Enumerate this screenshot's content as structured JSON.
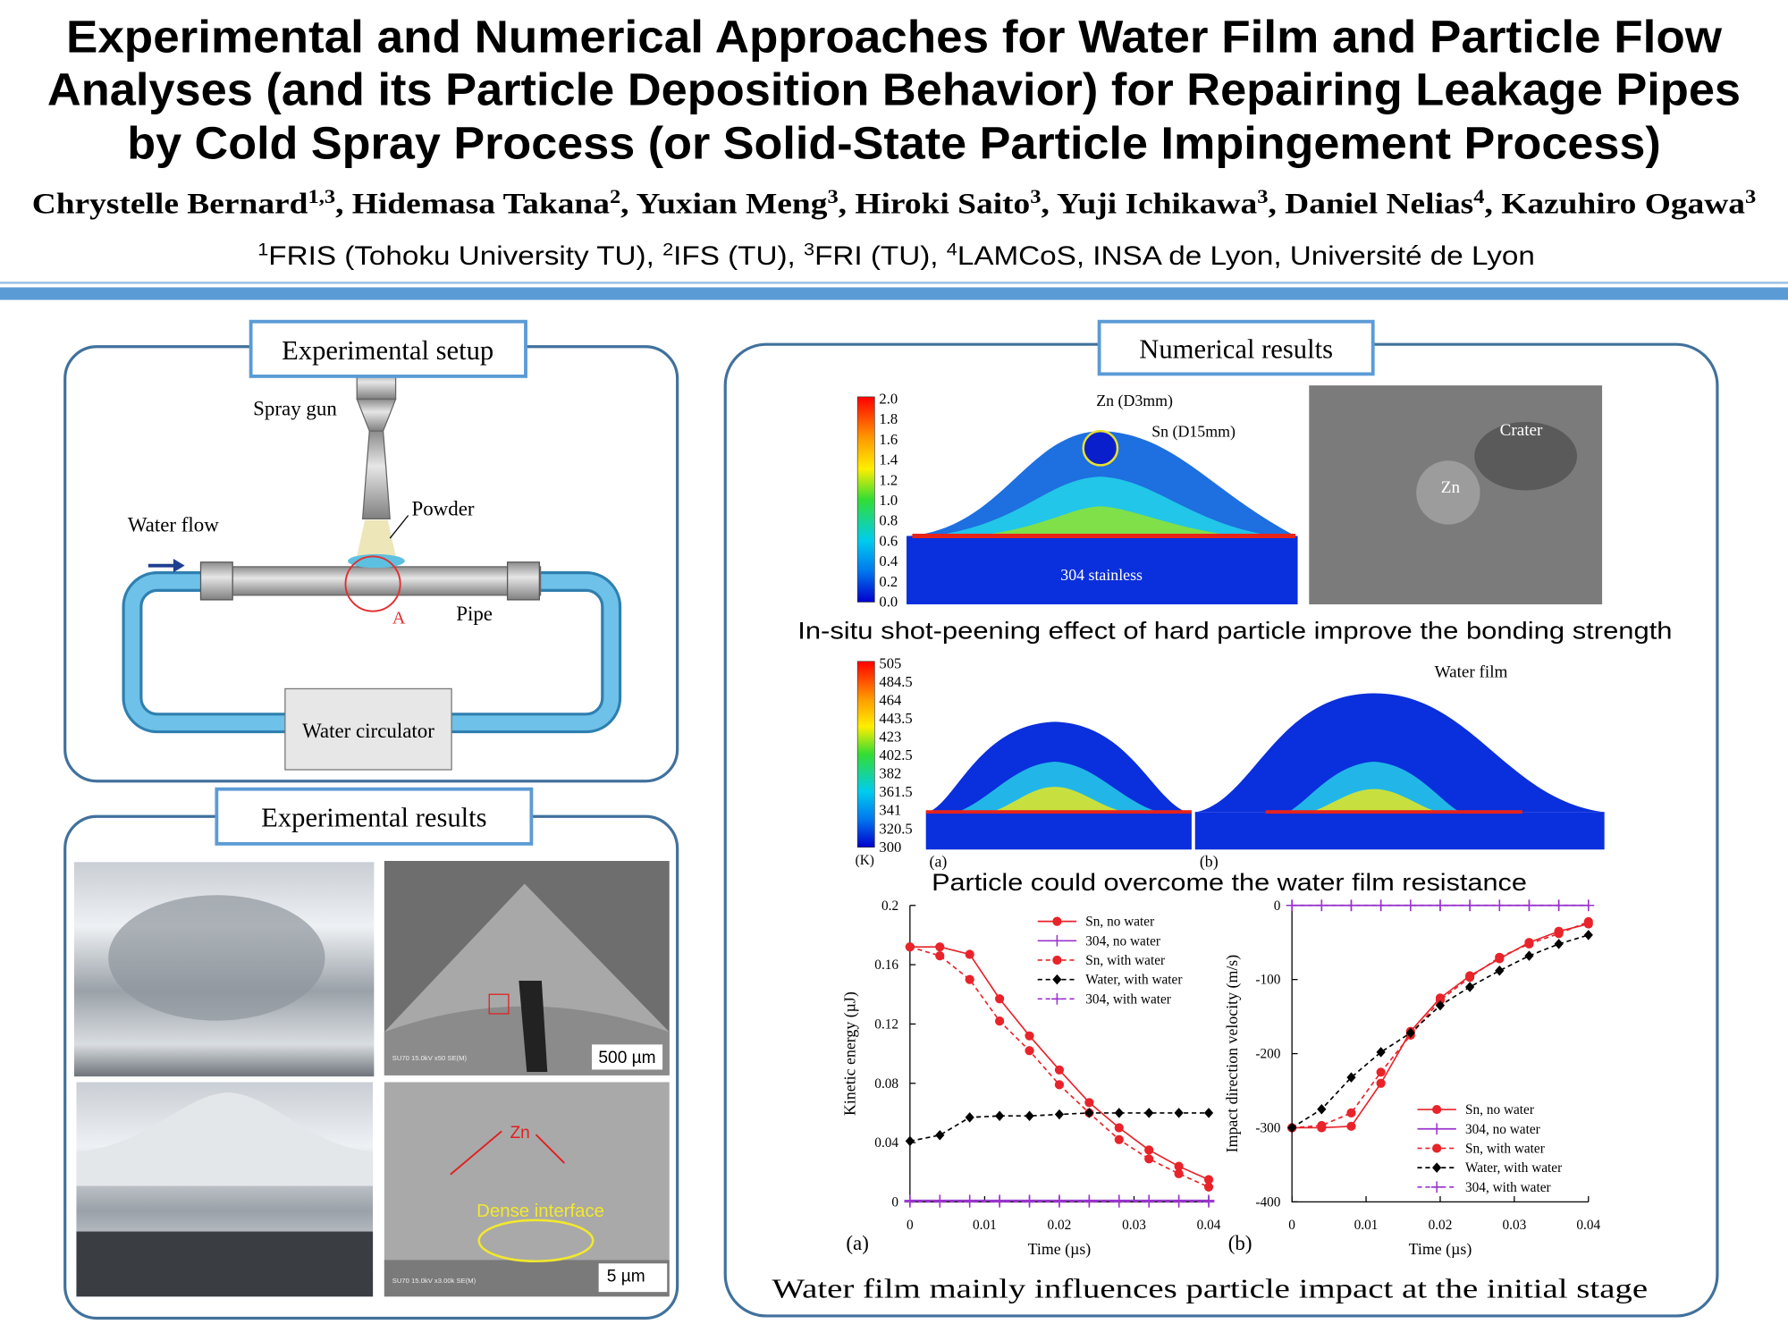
{
  "header": {
    "title_lines": [
      "Experimental and Numerical Approaches for Water Film and Particle Flow",
      "Analyses (and its Particle Deposition Behavior) for Repairing Leakage Pipes",
      "by Cold Spray Process (or Solid-State Particle Impingement Process)"
    ],
    "authors": [
      {
        "text": "Chrystelle Bernard",
        "sup": "1,3"
      },
      {
        "text": ", Hidemasa Takana",
        "sup": "2"
      },
      {
        "text": ", Yuxian Meng",
        "sup": "3"
      },
      {
        "text": ", Hiroki Saito",
        "sup": "3"
      },
      {
        "text": ", Yuji Ichikawa",
        "sup": "3"
      },
      {
        "text": ", Daniel Nelias",
        "sup": "4"
      },
      {
        "text": ", Kazuhiro Ogawa",
        "sup": "3"
      }
    ],
    "affiliations": [
      {
        "sup": "1",
        "text": "FRIS (Tohoku University TU), "
      },
      {
        "sup": "2",
        "text": "IFS (TU), "
      },
      {
        "sup": "3",
        "text": "FRI (TU), "
      },
      {
        "sup": "4",
        "text": "LAMCoS, INSA de Lyon, Université de Lyon"
      }
    ]
  },
  "setup": {
    "title": "Experimental setup",
    "labels": {
      "spray_gun": "Spray gun",
      "powder": "Powder",
      "water_flow": "Water flow",
      "pipe": "Pipe",
      "point": "A",
      "circulator": "Water circulator"
    }
  },
  "results": {
    "title": "Experimental results",
    "labels": {
      "scale1": "500 µm",
      "sem1": "SU70 15.0kV x50 SE(M)",
      "zn": "Zn",
      "interface": "Dense interface",
      "scale2": "5 µm",
      "sem2": "SU70 15.0kV x3.00k SE(M)"
    }
  },
  "numerical": {
    "title": "Numerical results",
    "fig1": {
      "colorbar": [
        "2.0",
        "1.8",
        "1.6",
        "1.4",
        "1.2",
        "1.0",
        "0.8",
        "0.6",
        "0.4",
        "0.2",
        "0.0"
      ],
      "labels": {
        "zn": "Zn (D3mm)",
        "sn": "Sn (D15mm)",
        "substrate": "304 stainless",
        "crater": "Crater",
        "zn_sem": "Zn"
      },
      "caption": "In-situ shot-peening effect of hard particle improve the bonding strength"
    },
    "fig2": {
      "colorbar": [
        "505",
        "484.5",
        "464",
        "443.5",
        "423",
        "402.5",
        "382",
        "361.5",
        "341",
        "320.5",
        "300"
      ],
      "unit": "(K)",
      "labels": {
        "a": "(a)",
        "b": "(b)",
        "film": "Water film"
      },
      "caption": "Particle could overcome the water film resistance"
    },
    "caption": "Water film mainly influences particle impact at the initial stage"
  },
  "chart_data": [
    {
      "type": "line",
      "panel": "(a)",
      "x_label": "Time (µs)",
      "y_label": "Kinetic energy (µJ)",
      "x": [
        0,
        0.004,
        0.008,
        0.012,
        0.016,
        0.02,
        0.024,
        0.028,
        0.032,
        0.036,
        0.04
      ],
      "xlim": [
        0,
        0.04
      ],
      "xticks": [
        0,
        0.01,
        0.02,
        0.03,
        0.04
      ],
      "ylim": [
        0,
        0.2
      ],
      "yticks": [
        0,
        0.04,
        0.08,
        0.12,
        0.16,
        0.2
      ],
      "legend": "upper right",
      "series": [
        {
          "name": "Sn, no water",
          "color": "#e8232a",
          "marker": "circle",
          "dashed": false,
          "values": [
            0.172,
            0.172,
            0.167,
            0.137,
            0.112,
            0.089,
            0.067,
            0.05,
            0.035,
            0.024,
            0.015
          ]
        },
        {
          "name": "304, no water",
          "color": "#9933cc",
          "marker": "plus",
          "dashed": false,
          "values": [
            0.001,
            0.001,
            0.001,
            0.001,
            0.001,
            0.001,
            0.001,
            0.001,
            0.001,
            0.001,
            0.001
          ]
        },
        {
          "name": "Sn, with water",
          "color": "#e8232a",
          "marker": "circle",
          "dashed": true,
          "values": [
            0.172,
            0.166,
            0.15,
            0.122,
            0.102,
            0.079,
            0.06,
            0.042,
            0.029,
            0.019,
            0.01
          ]
        },
        {
          "name": "Water, with water",
          "color": "#000000",
          "marker": "diamond",
          "dashed": true,
          "values": [
            0.041,
            0.045,
            0.057,
            0.058,
            0.058,
            0.059,
            0.06,
            0.06,
            0.06,
            0.06,
            0.06
          ]
        },
        {
          "name": "304, with water",
          "color": "#9933cc",
          "marker": "plus",
          "dashed": true,
          "values": [
            0,
            0,
            0,
            0,
            0,
            0,
            0,
            0,
            0,
            0,
            0
          ]
        }
      ]
    },
    {
      "type": "line",
      "panel": "(b)",
      "x_label": "Time (µs)",
      "y_label": "Impact direction velocity (m/s)",
      "x": [
        0,
        0.004,
        0.008,
        0.012,
        0.016,
        0.02,
        0.024,
        0.028,
        0.032,
        0.036,
        0.04
      ],
      "xlim": [
        0,
        0.04
      ],
      "xticks": [
        0,
        0.01,
        0.02,
        0.03,
        0.04
      ],
      "ylim": [
        -400,
        0
      ],
      "yticks": [
        -400,
        -300,
        -200,
        -100,
        0
      ],
      "legend": "lower right",
      "series": [
        {
          "name": "Sn, no water",
          "color": "#e8232a",
          "marker": "circle",
          "dashed": false,
          "values": [
            -300,
            -300,
            -298,
            -240,
            -170,
            -125,
            -95,
            -72,
            -50,
            -35,
            -25
          ]
        },
        {
          "name": "304, no water",
          "color": "#9933cc",
          "marker": "plus",
          "dashed": false,
          "values": [
            0,
            0,
            0,
            0,
            0,
            0,
            0,
            0,
            0,
            0,
            0
          ]
        },
        {
          "name": "Sn, with water",
          "color": "#e8232a",
          "marker": "circle",
          "dashed": true,
          "values": [
            -300,
            -297,
            -280,
            -225,
            -175,
            -128,
            -97,
            -70,
            -52,
            -38,
            -22
          ]
        },
        {
          "name": "Water, with water",
          "color": "#000000",
          "marker": "diamond",
          "dashed": true,
          "values": [
            -300,
            -275,
            -232,
            -198,
            -172,
            -135,
            -110,
            -88,
            -68,
            -52,
            -40
          ]
        },
        {
          "name": "304, with water",
          "color": "#9933cc",
          "marker": "plus",
          "dashed": true,
          "values": [
            0,
            0,
            0,
            0,
            0,
            0,
            0,
            0,
            0,
            0,
            0
          ]
        }
      ]
    }
  ]
}
